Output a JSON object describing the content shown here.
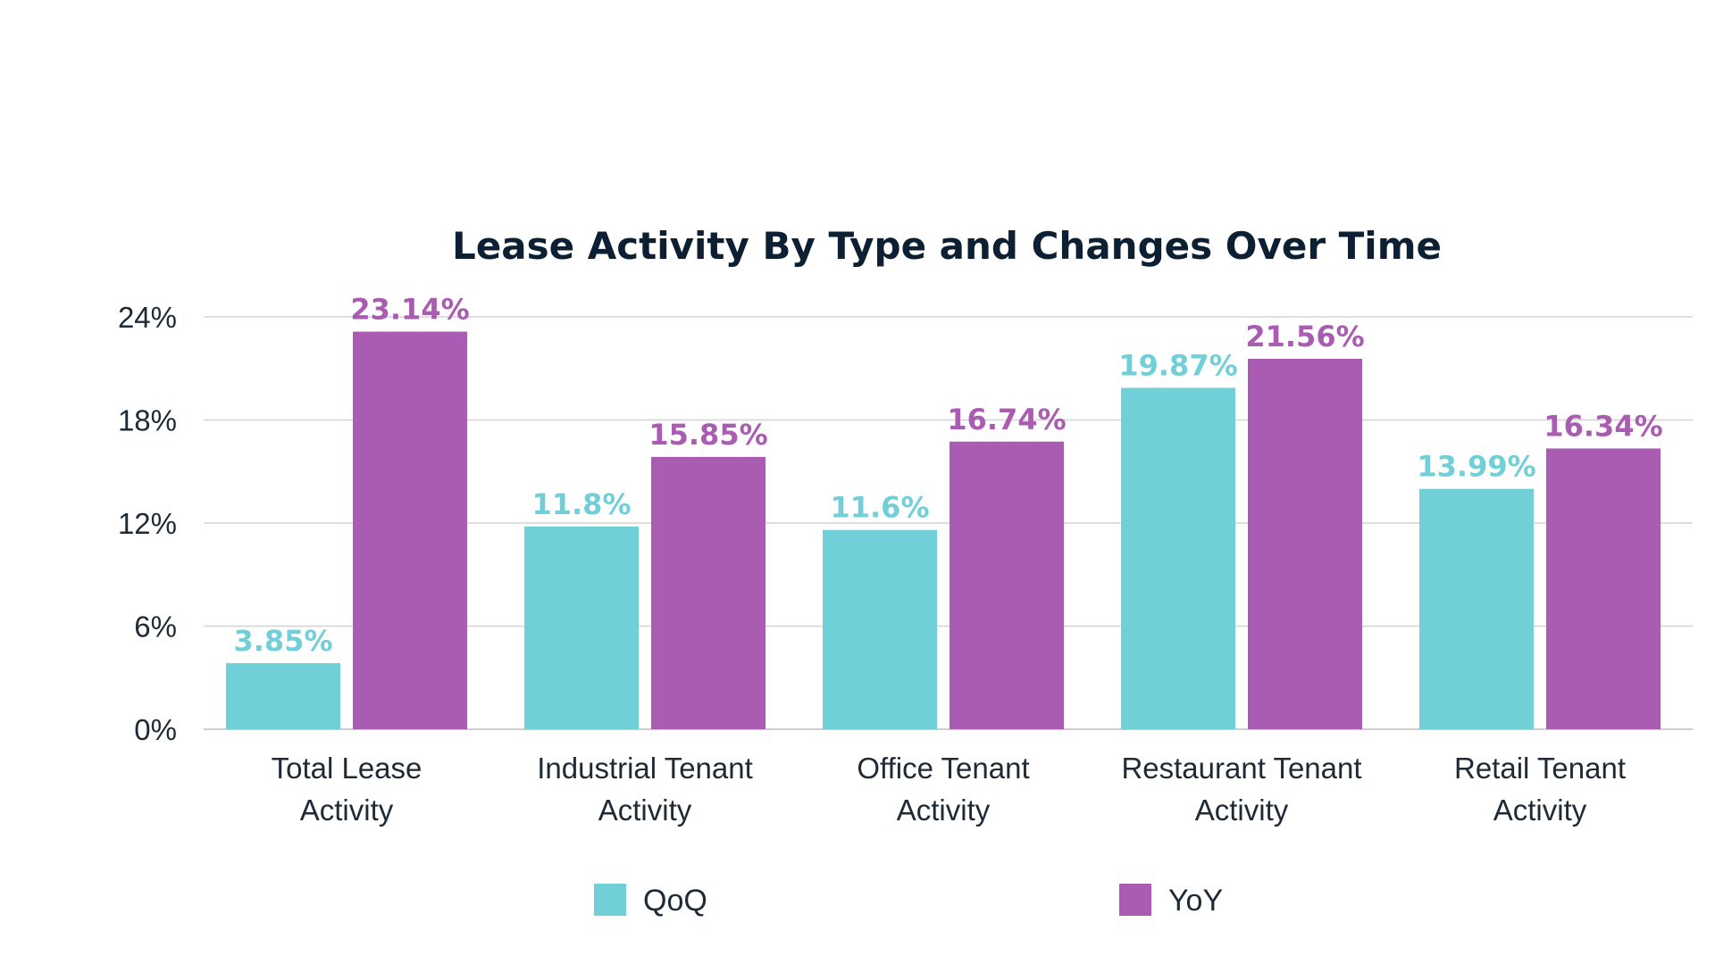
{
  "chart_data": {
    "type": "bar",
    "title": "Lease Activity By Type and Changes Over Time",
    "categories": [
      [
        "Total Lease",
        "Activity"
      ],
      [
        "Industrial Tenant",
        "Activity"
      ],
      [
        "Office Tenant",
        "Activity"
      ],
      [
        "Restaurant Tenant",
        "Activity"
      ],
      [
        "Retail Tenant",
        "Activity"
      ]
    ],
    "series": [
      {
        "name": "QoQ",
        "color": "#71cfd7",
        "values": [
          3.85,
          11.8,
          11.6,
          19.87,
          13.99
        ],
        "labels": [
          "3.85%",
          "11.8%",
          "11.6%",
          "19.87%",
          "13.99%"
        ]
      },
      {
        "name": "YoY",
        "color": "#a95cb1",
        "values": [
          23.14,
          15.85,
          16.74,
          21.56,
          16.34
        ],
        "labels": [
          "23.14%",
          "15.85%",
          "16.74%",
          "21.56%",
          "16.34%"
        ]
      }
    ],
    "y_ticks": [
      0,
      6,
      12,
      18,
      24
    ],
    "y_tick_labels": [
      "0%",
      "6%",
      "12%",
      "18%",
      "24%"
    ],
    "ylim": [
      0,
      24
    ],
    "grid": true,
    "legend_position": "bottom-center",
    "xlabel": "",
    "ylabel": ""
  }
}
